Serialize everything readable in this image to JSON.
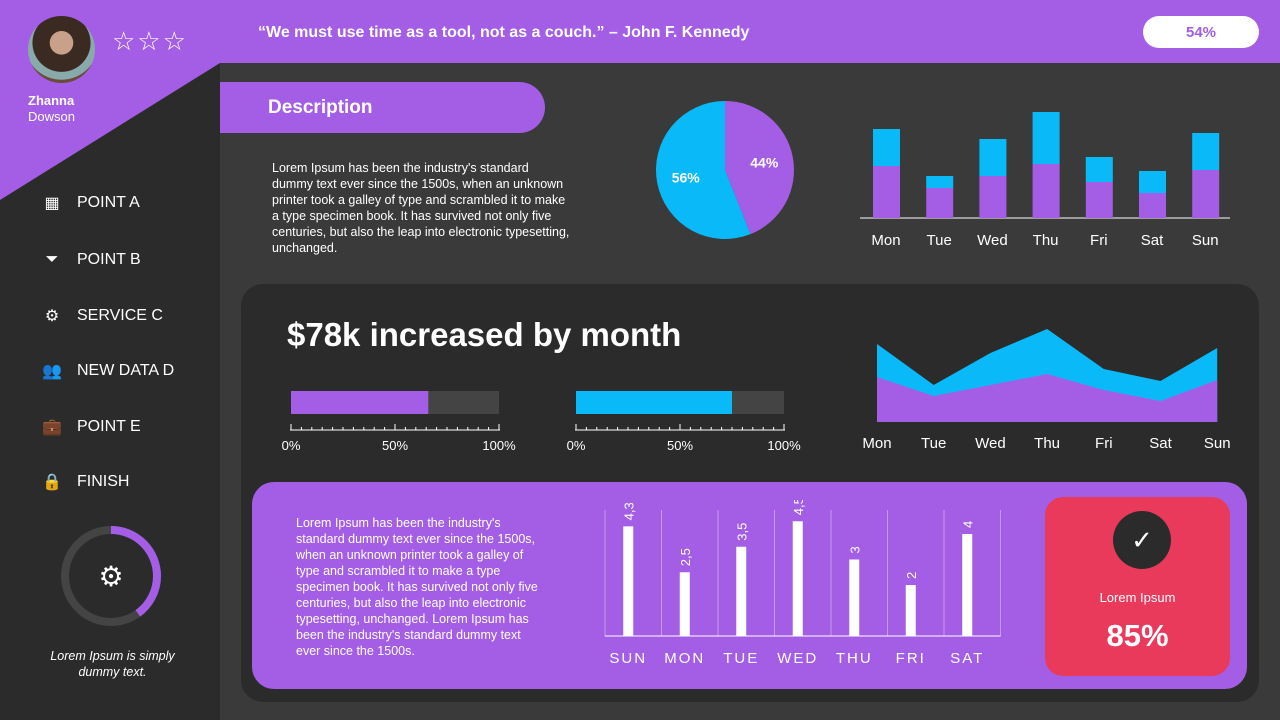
{
  "user": {
    "first": "Zhanna",
    "last": "Dowson",
    "stars": "☆☆☆",
    "rating_stars_filled": 0
  },
  "nav": [
    {
      "icon": "calendar-icon",
      "glyph": "▦",
      "label": "POINT A"
    },
    {
      "icon": "funnel-icon",
      "glyph": "⏷",
      "label": "POINT B"
    },
    {
      "icon": "gear-icon",
      "glyph": "⚙",
      "label": "SERVICE C"
    },
    {
      "icon": "users-icon",
      "glyph": "👥",
      "label": "NEW DATA D"
    },
    {
      "icon": "briefcase-icon",
      "glyph": "💼",
      "label": "POINT E"
    },
    {
      "icon": "lock-icon",
      "glyph": "🔒",
      "label": "FINISH"
    }
  ],
  "header": {
    "quote": "“We must use time as a tool, not as a couch.” – John F. Kennedy",
    "percent": "54%"
  },
  "description": {
    "title": "Description",
    "text": "Lorem Ipsum has been the industry's standard dummy text ever since the 1500s, when an unknown printer took a galley of type and scrambled it to make a type specimen book. It has survived not only five centuries, but also the leap into electronic typesetting, unchanged."
  },
  "colors": {
    "purple": "#a45ee5",
    "blue": "#0abaf8",
    "red": "#ea3a5c",
    "dark": "#2b2b2b"
  },
  "headline": "$78k increased by month",
  "progress": [
    {
      "value": 66,
      "color": "#a45ee5",
      "ticks": [
        "0%",
        "50%",
        "100%"
      ]
    },
    {
      "value": 75,
      "color": "#0abaf8",
      "ticks": [
        "0%",
        "50%",
        "100%"
      ]
    }
  ],
  "sidebar_gauge": {
    "value": 40,
    "caption": "Lorem Ipsum is simply dummy text."
  },
  "bottom_text": "Lorem Ipsum has been the industry's standard dummy text ever since the 1500s, when an unknown printer took a galley of type and scrambled it to make a type specimen book. It has survived not only five centuries, but also the leap into electronic typesetting, unchanged. Lorem Ipsum has been the industry's standard dummy text ever since the 1500s.",
  "kpi": {
    "label": "Lorem Ipsum",
    "value": "85%"
  },
  "chart_data": [
    {
      "type": "pie",
      "labels": [
        "44%",
        "56%"
      ],
      "values": [
        44,
        56
      ],
      "colors": [
        "#a45ee5",
        "#0abaf8"
      ]
    },
    {
      "type": "bar",
      "stacked": true,
      "categories": [
        "Mon",
        "Tue",
        "Wed",
        "Thu",
        "Fri",
        "Sat",
        "Sun"
      ],
      "series": [
        {
          "values": [
            52,
            30,
            42,
            54,
            36,
            25,
            48
          ],
          "color": "#a45ee5"
        },
        {
          "values": [
            37,
            12,
            37,
            52,
            25,
            22,
            37
          ],
          "color": "#0abaf8"
        }
      ]
    },
    {
      "type": "area",
      "stacked": false,
      "categories": [
        "Mon",
        "Tue",
        "Wed",
        "Thu",
        "Fri",
        "Sat",
        "Sun"
      ],
      "series": [
        {
          "values": [
            78,
            37,
            69,
            93,
            53,
            41,
            74
          ],
          "color": "#0abaf8"
        },
        {
          "values": [
            45,
            26,
            37,
            48,
            32,
            21,
            42
          ],
          "color": "#a45ee5"
        }
      ]
    },
    {
      "type": "bar",
      "categories": [
        "SUN",
        "MON",
        "TUE",
        "WED",
        "THU",
        "FRI",
        "SAT"
      ],
      "values": [
        4.3,
        2.5,
        3.5,
        4.5,
        3,
        2,
        4
      ],
      "labels": [
        "4,3",
        "2,5",
        "3,5",
        "4,5",
        "3",
        "2",
        "4"
      ]
    }
  ]
}
